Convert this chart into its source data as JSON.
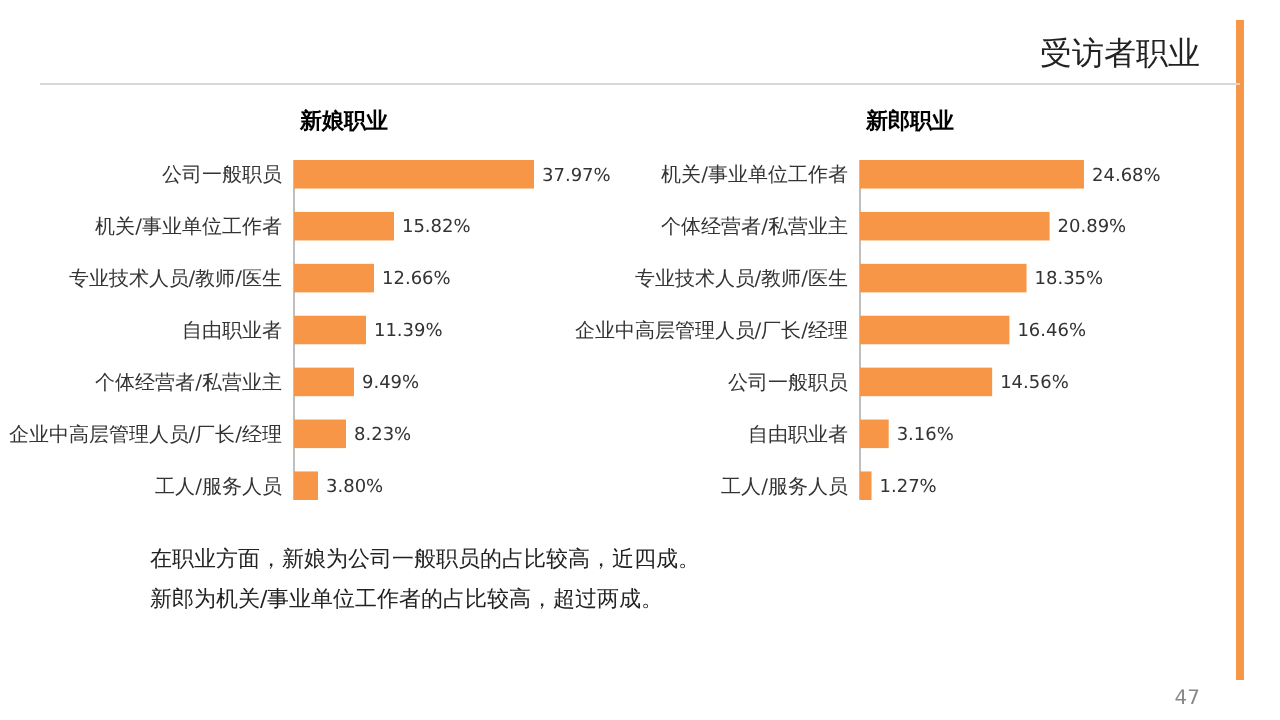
{
  "chart_data": [
    {
      "type": "bar",
      "orientation": "horizontal",
      "title": "新娘职业",
      "categories": [
        "公司一般职员",
        "机关/事业单位工作者",
        "专业技术人员/教师/医生",
        "自由职业者",
        "个体经营者/私营业主",
        "企业中高层管理人员/厂长/经理",
        "工人/服务人员"
      ],
      "values": [
        37.97,
        15.82,
        12.66,
        11.39,
        9.49,
        8.23,
        3.8
      ],
      "color": "#f79646",
      "value_labels": [
        "37.97%",
        "15.82%",
        "12.66%",
        "11.39%",
        "9.49%",
        "8.23%",
        "3.80%"
      ]
    },
    {
      "type": "bar",
      "orientation": "horizontal",
      "title": "新郎职业",
      "categories": [
        "机关/事业单位工作者",
        "个体经营者/私营业主",
        "专业技术人员/教师/医生",
        "企业中高层管理人员/厂长/经理",
        "公司一般职员",
        "自由职业者",
        "工人/服务人员"
      ],
      "values": [
        24.68,
        20.89,
        18.35,
        16.46,
        14.56,
        3.16,
        1.27
      ],
      "color": "#f79646",
      "value_labels": [
        "24.68%",
        "20.89%",
        "18.35%",
        "16.46%",
        "14.56%",
        "3.16%",
        "1.27%"
      ]
    },
    {
      "type": "other",
      "title": "受访者职业",
      "annotations": [
        "在职业方面，新娘为公司一般职员的占比较高，近四成。",
        "新郎为机关/事业单位工作者的占比较高，超过两成。",
        "47"
      ]
    }
  ]
}
